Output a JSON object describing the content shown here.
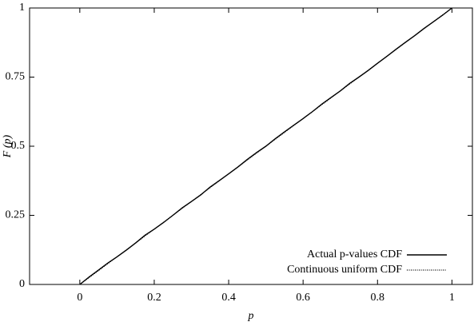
{
  "chart_data": {
    "type": "line",
    "xlabel": "p",
    "ylabel": "F (p)",
    "x": [
      0,
      0.025,
      0.05,
      0.075,
      0.1,
      0.125,
      0.15,
      0.175,
      0.2,
      0.225,
      0.25,
      0.275,
      0.3,
      0.325,
      0.35,
      0.375,
      0.4,
      0.425,
      0.45,
      0.475,
      0.5,
      0.525,
      0.55,
      0.575,
      0.6,
      0.625,
      0.65,
      0.675,
      0.7,
      0.725,
      0.75,
      0.775,
      0.8,
      0.825,
      0.85,
      0.875,
      0.9,
      0.925,
      0.95,
      0.975,
      1
    ],
    "series": [
      {
        "name": "Actual p-values CDF",
        "color": "#000000",
        "dash": "solid",
        "values": [
          0,
          0.027,
          0.052,
          0.077,
          0.1,
          0.124,
          0.15,
          0.178,
          0.2,
          0.224,
          0.25,
          0.277,
          0.3,
          0.324,
          0.352,
          0.376,
          0.4,
          0.425,
          0.452,
          0.477,
          0.5,
          0.527,
          0.552,
          0.576,
          0.6,
          0.625,
          0.652,
          0.676,
          0.7,
          0.727,
          0.75,
          0.774,
          0.8,
          0.825,
          0.851,
          0.876,
          0.9,
          0.926,
          0.95,
          0.974,
          1
        ]
      },
      {
        "name": "Continuous uniform CDF",
        "color": "#000000",
        "dash": "dotted",
        "values": [
          0,
          0.025,
          0.05,
          0.075,
          0.1,
          0.125,
          0.15,
          0.175,
          0.2,
          0.225,
          0.25,
          0.275,
          0.3,
          0.325,
          0.35,
          0.375,
          0.4,
          0.425,
          0.45,
          0.475,
          0.5,
          0.525,
          0.55,
          0.575,
          0.6,
          0.625,
          0.65,
          0.675,
          0.7,
          0.725,
          0.75,
          0.775,
          0.8,
          0.825,
          0.85,
          0.875,
          0.9,
          0.925,
          0.95,
          0.975,
          1
        ]
      }
    ],
    "xlim": [
      -0.135,
      1.055
    ],
    "ylim": [
      0,
      1
    ],
    "xticks": [
      0,
      0.2,
      0.4,
      0.6,
      0.8,
      1
    ],
    "yticks": [
      0,
      0.25,
      0.5,
      0.75,
      1
    ],
    "legend": "lower right",
    "grid": false
  }
}
